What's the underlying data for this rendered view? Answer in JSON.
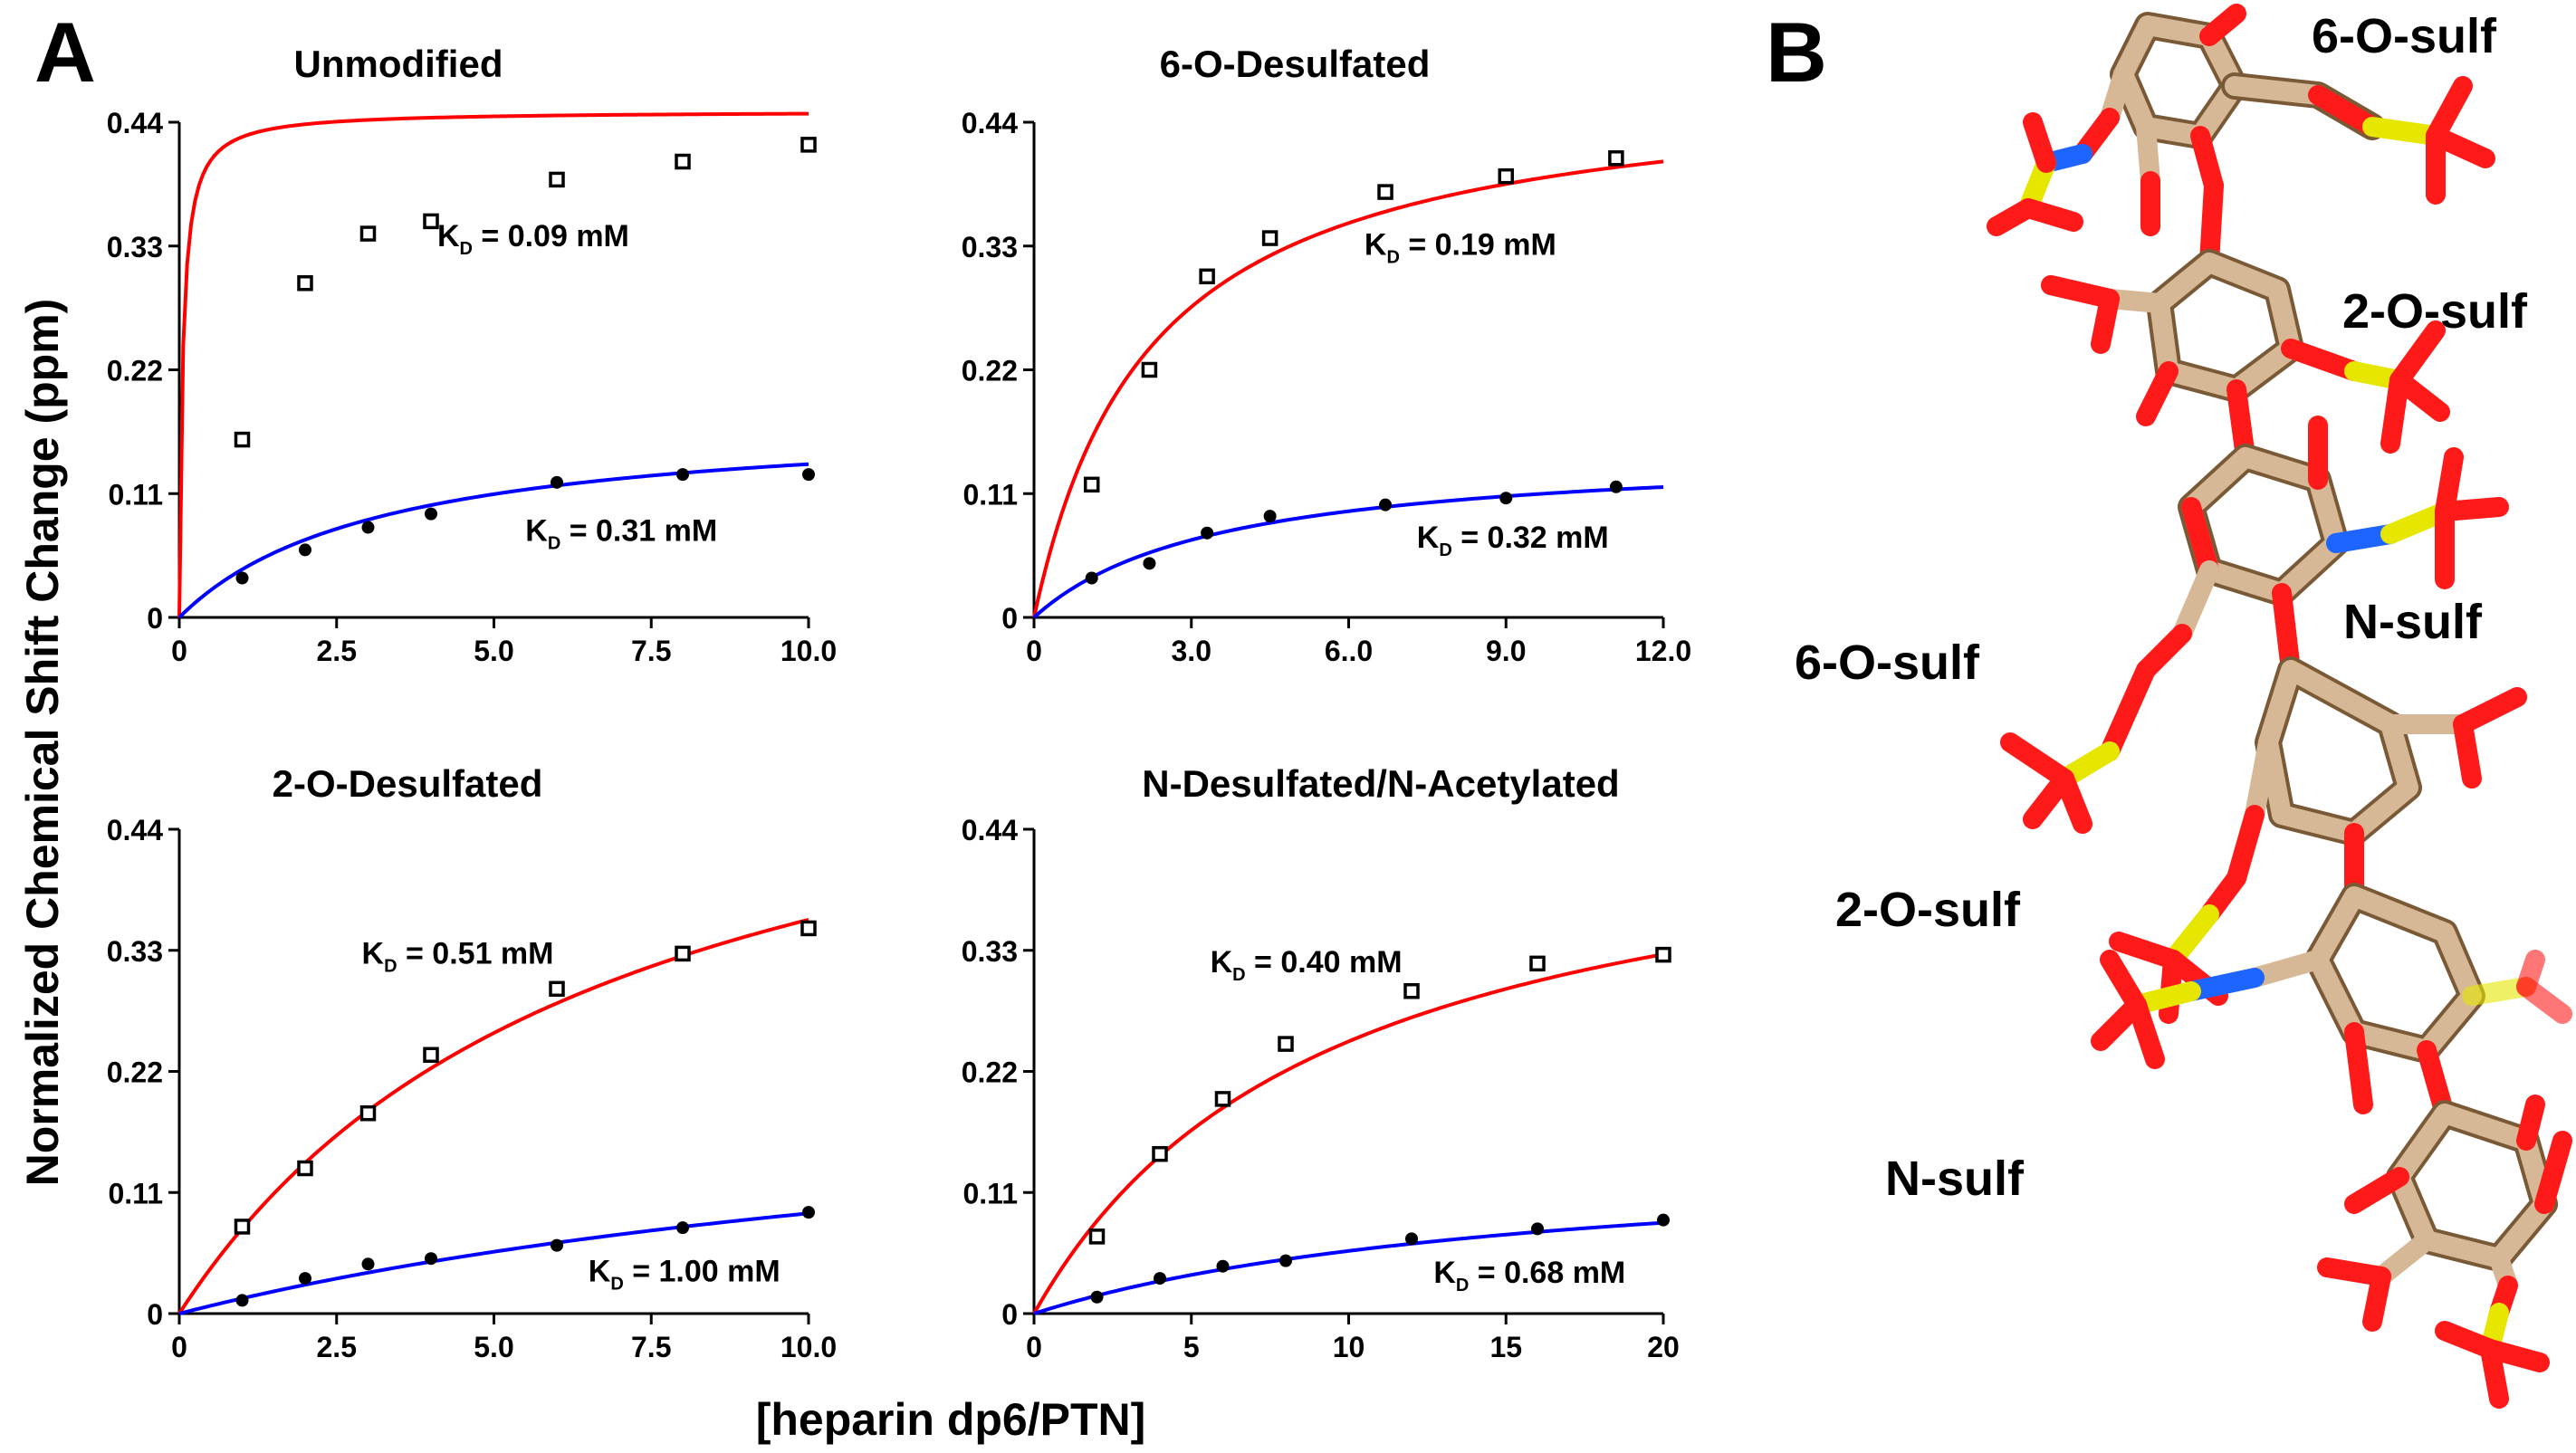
{
  "figure": {
    "panel_a_label": "A",
    "panel_b_label": "B",
    "shared_ylabel": "Normalized Chemical Shift Change (ppm)",
    "shared_xlabel": "[heparin dp6/PTN]"
  },
  "colors": {
    "high_affinity_curve": "#ff0000",
    "low_affinity_curve": "#0000ff",
    "markers": "#000000",
    "carbon": "#d2b48c",
    "oxygen": "#ff0000",
    "sulfur": "#e6e600",
    "nitrogen": "#1e64ff"
  },
  "chart_data": [
    {
      "type": "scatter",
      "title": "Unmodified",
      "xlabel": "[heparin dp6/PTN]",
      "ylabel": "Normalized Chemical Shift Change (ppm)",
      "xlim": [
        0,
        10
      ],
      "ylim": [
        0,
        0.44
      ],
      "xticks": [
        0,
        2.5,
        5,
        7.5,
        10
      ],
      "xtick_labels": [
        "0",
        "2.5",
        "5.0",
        "7.5",
        "10.0"
      ],
      "yticks": [
        0,
        0.11,
        0.22,
        0.33,
        0.44
      ],
      "ytick_labels": [
        "0",
        "0.11",
        "0.22",
        "0.33",
        "0.44"
      ],
      "series": [
        {
          "name": "red",
          "color": "#ff0000",
          "marker": "square-open",
          "x": [
            1,
            2,
            3,
            4,
            6,
            8,
            10
          ],
          "y": [
            0.158,
            0.297,
            0.341,
            0.352,
            0.389,
            0.405,
            0.42
          ],
          "fit": {
            "bmax": 0.45,
            "kd": 0.09,
            "scale": 0.6
          },
          "annotation": {
            "prefix": "K",
            "subscript": "D",
            "text": " = 0.09 mM",
            "at": [
              4.1,
              0.33
            ]
          }
        },
        {
          "name": "blue",
          "color": "#0000ff",
          "marker": "circle-filled",
          "x": [
            1,
            2,
            3,
            4,
            6,
            8,
            10
          ],
          "y": [
            0.035,
            0.06,
            0.08,
            0.092,
            0.12,
            0.127,
            0.127
          ],
          "fit": {
            "bmax": 0.18,
            "kd": 0.31,
            "scale": 10.38
          },
          "annotation": {
            "prefix": "K",
            "subscript": "D",
            "text": " = 0.31 mM",
            "at": [
              5.5,
              0.068
            ]
          }
        }
      ]
    },
    {
      "type": "scatter",
      "title": "6-O-Desulfated",
      "xlabel": "[heparin dp6/PTN]",
      "ylabel": "Normalized Chemical Shift Change (ppm)",
      "xlim": [
        0,
        12
      ],
      "ylim": [
        0,
        0.44
      ],
      "xticks": [
        0,
        3,
        6,
        9,
        12
      ],
      "xtick_labels": [
        "0",
        "3.0",
        "6..0",
        "9.0",
        "12.0"
      ],
      "yticks": [
        0,
        0.11,
        0.22,
        0.33,
        0.44
      ],
      "ytick_labels": [
        "0",
        "0.11",
        "0.22",
        "0.33",
        "0.44"
      ],
      "series": [
        {
          "name": "red",
          "color": "#ff0000",
          "marker": "square-open",
          "x": [
            1.1,
            2.2,
            3.3,
            4.5,
            6.7,
            9.0,
            11.1
          ],
          "y": [
            0.118,
            0.22,
            0.303,
            0.337,
            0.378,
            0.392,
            0.408
          ],
          "fit": {
            "bmax": 0.48,
            "kd": 0.19,
            "scale": 11.68
          },
          "annotation": {
            "prefix": "K",
            "subscript": "D",
            "text": " = 0.19 mM",
            "at": [
              6.3,
              0.322
            ]
          }
        },
        {
          "name": "blue",
          "color": "#0000ff",
          "marker": "circle-filled",
          "x": [
            1.1,
            2.2,
            3.3,
            4.5,
            6.7,
            9.0,
            11.1
          ],
          "y": [
            0.035,
            0.048,
            0.075,
            0.09,
            0.1,
            0.106,
            0.116
          ],
          "fit": {
            "bmax": 0.15,
            "kd": 0.32,
            "scale": 11.06
          },
          "annotation": {
            "prefix": "K",
            "subscript": "D",
            "text": " = 0.32 mM",
            "at": [
              7.3,
              0.062
            ]
          }
        }
      ]
    },
    {
      "type": "scatter",
      "title": "2-O-Desulfated",
      "xlabel": "[heparin dp6/PTN]",
      "ylabel": "Normalized Chemical Shift Change (ppm)",
      "xlim": [
        0,
        10
      ],
      "ylim": [
        0,
        0.44
      ],
      "xticks": [
        0,
        2.5,
        5,
        7.5,
        10
      ],
      "xtick_labels": [
        "0",
        "2.5",
        "5.0",
        "7.5",
        "10.0"
      ],
      "yticks": [
        0,
        0.11,
        0.22,
        0.33,
        0.44
      ],
      "ytick_labels": [
        "0",
        "0.11",
        "0.22",
        "0.33",
        "0.44"
      ],
      "series": [
        {
          "name": "red",
          "color": "#ff0000",
          "marker": "square-open",
          "x": [
            1,
            2,
            3,
            4,
            6,
            8,
            10
          ],
          "y": [
            0.079,
            0.132,
            0.182,
            0.235,
            0.295,
            0.327,
            0.35
          ],
          "fit": {
            "bmax": 0.6,
            "kd": 0.51,
            "scale": 13.27
          },
          "annotation": {
            "prefix": "K",
            "subscript": "D",
            "text": " = 0.51 mM",
            "at": [
              2.9,
              0.318
            ]
          }
        },
        {
          "name": "blue",
          "color": "#0000ff",
          "marker": "circle-filled",
          "x": [
            1,
            2,
            3,
            4,
            6,
            8,
            10
          ],
          "y": [
            0.012,
            0.032,
            0.045,
            0.05,
            0.062,
            0.078,
            0.092
          ],
          "fit": {
            "bmax": 0.24,
            "kd": 1.0,
            "scale": 16.36
          },
          "annotation": {
            "prefix": "K",
            "subscript": "D",
            "text": " = 1.00 mM",
            "at": [
              6.5,
              0.029
            ]
          }
        }
      ]
    },
    {
      "type": "scatter",
      "title": "N-Desulfated/N-Acetylated",
      "xlabel": "[heparin dp6/PTN]",
      "ylabel": "Normalized Chemical Shift Change (ppm)",
      "xlim": [
        0,
        20
      ],
      "ylim": [
        0,
        0.44
      ],
      "xticks": [
        0,
        5,
        10,
        15,
        20
      ],
      "xtick_labels": [
        "0",
        "5",
        "10",
        "15",
        "20"
      ],
      "yticks": [
        0,
        0.11,
        0.22,
        0.33,
        0.44
      ],
      "ytick_labels": [
        "0",
        "0.11",
        "0.22",
        "0.33",
        "0.44"
      ],
      "series": [
        {
          "name": "red",
          "color": "#ff0000",
          "marker": "square-open",
          "x": [
            2,
            4,
            6,
            8,
            12,
            16,
            20
          ],
          "y": [
            0.07,
            0.145,
            0.195,
            0.245,
            0.293,
            0.318,
            0.326
          ],
          "fit": {
            "bmax": 0.48,
            "kd": 0.4,
            "scale": 23.53
          },
          "annotation": {
            "prefix": "K",
            "subscript": "D",
            "text": " = 0.40 mM",
            "at": [
              5.6,
              0.31
            ]
          }
        },
        {
          "name": "blue",
          "color": "#0000ff",
          "marker": "circle-filled",
          "x": [
            2,
            4,
            6,
            8,
            12,
            16,
            20
          ],
          "y": [
            0.015,
            0.032,
            0.043,
            0.048,
            0.068,
            0.077,
            0.085
          ],
          "fit": {
            "bmax": 0.15,
            "kd": 0.68,
            "scale": 24.05
          },
          "annotation": {
            "prefix": "K",
            "subscript": "D",
            "text": " = 0.68 mM",
            "at": [
              12.7,
              0.028
            ]
          }
        }
      ]
    }
  ],
  "molecule": {
    "labels": [
      "6-O-sulf",
      "2-O-sulf",
      "N-sulf",
      "6-O-sulf",
      "2-O-sulf",
      "N-sulf"
    ],
    "description_role": "stick model of heparin hexasaccharide"
  }
}
